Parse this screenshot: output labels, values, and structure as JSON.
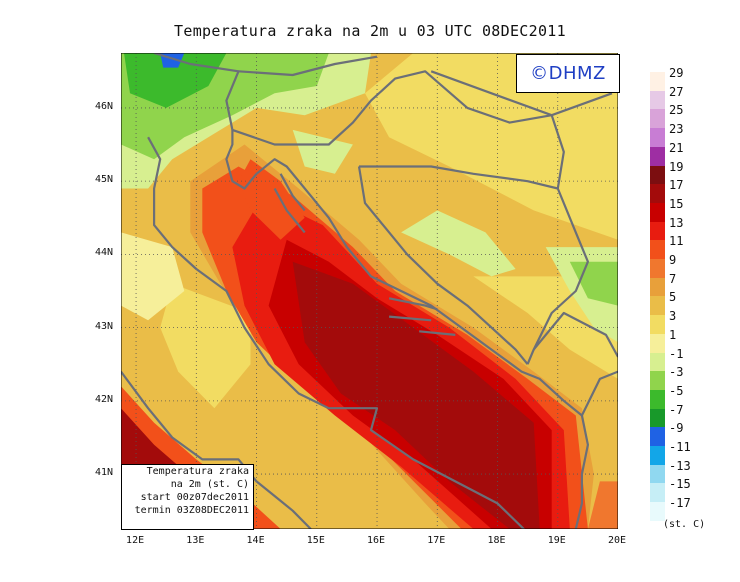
{
  "title": "Temperatura zraka na 2m u 03 UTC 08DEC2011",
  "logo_text": "©DHMZ",
  "map": {
    "lon_range": [
      11.75,
      20.0
    ],
    "lat_range": [
      40.25,
      46.75
    ],
    "lon_ticks": [
      "12E",
      "13E",
      "14E",
      "15E",
      "16E",
      "17E",
      "18E",
      "19E",
      "20E"
    ],
    "lat_ticks": [
      "41N",
      "42N",
      "43N",
      "44N",
      "45N",
      "46N"
    ],
    "grid": "dotted"
  },
  "legend": {
    "labels": [
      "29",
      "27",
      "25",
      "23",
      "21",
      "19",
      "17",
      "15",
      "13",
      "11",
      "9",
      "7",
      "5",
      "3",
      "1",
      "-1",
      "-3",
      "-5",
      "-7",
      "-9",
      "-11",
      "-13",
      "-15",
      "-17"
    ],
    "colors": [
      "#fff1e4",
      "#e6c9e6",
      "#d9a3d9",
      "#c87dd4",
      "#9e2ea3",
      "#7c0e10",
      "#a30b0b",
      "#c80000",
      "#e81c10",
      "#f2501a",
      "#f0772e",
      "#e8a03a",
      "#eabd48",
      "#f2dc62",
      "#f6ef9a",
      "#d7ef90",
      "#90d44c",
      "#3cba2c",
      "#18992a",
      "#1f62e4",
      "#12a6e8",
      "#90d8f0",
      "#c6eef6",
      "#e8fafc"
    ],
    "units": "(st. C)"
  },
  "info": {
    "line1": "Temperatura zraka",
    "line2": "na 2m (st. C)",
    "line3": "start 00z07dec2011",
    "line4": "termin 03Z08DEC2011"
  }
}
